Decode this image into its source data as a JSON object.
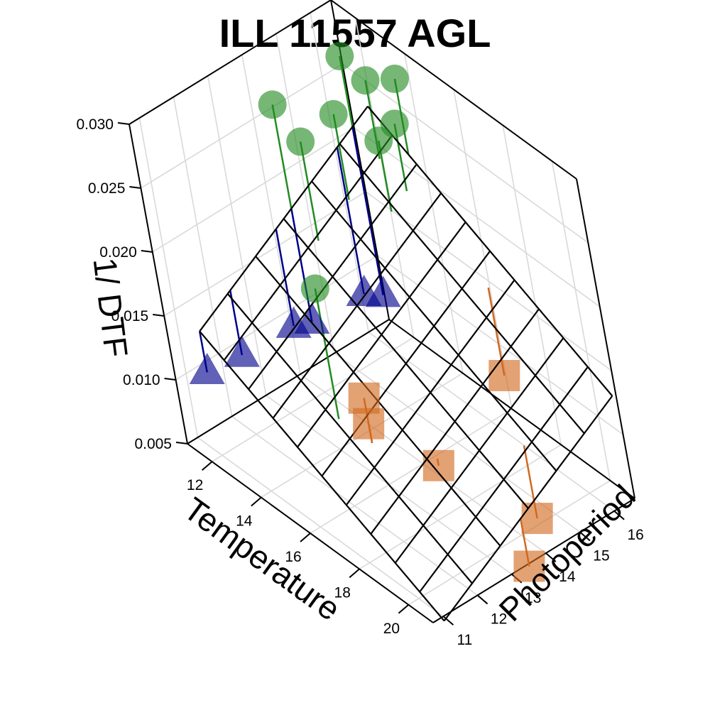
{
  "chart_data": {
    "type": "scatter",
    "title": "ILL 11557 AGL",
    "xlabel": "Temperature",
    "ylabel": "Photoperiod",
    "zlabel": "1/ DTF",
    "x_ticks": [
      "12",
      "14",
      "16",
      "18",
      "20"
    ],
    "y_ticks": [
      "11",
      "12",
      "13",
      "14",
      "15",
      "16"
    ],
    "z_ticks": [
      "0.005",
      "0.010",
      "0.015",
      "0.020",
      "0.025",
      "0.030"
    ],
    "xlim": [
      11,
      21
    ],
    "ylim": [
      10.7,
      16.6
    ],
    "zlim": [
      0.005,
      0.03
    ],
    "grid": true,
    "fitted_plane": {
      "x_range": [
        12,
        21
      ],
      "y_range": [
        11,
        16.5
      ],
      "x_steps": 10,
      "y_steps": 6
    },
    "series": [
      {
        "marker": "triangle",
        "color": "#00008B",
        "points": [
          {
            "x": 12,
            "y": 16,
            "z": 0.0093
          },
          {
            "x": 12,
            "y": 15.5,
            "z": 0.0102
          },
          {
            "x": 12,
            "y": 14,
            "z": 0.0105
          },
          {
            "x": 12,
            "y": 13.5,
            "z": 0.011
          },
          {
            "x": 12,
            "y": 12,
            "z": 0.0112
          },
          {
            "x": 12,
            "y": 11,
            "z": 0.0115
          }
        ]
      },
      {
        "marker": "square",
        "color": "#D2691E",
        "points": [
          {
            "x": 17,
            "y": 12.2,
            "z": 0.0145
          },
          {
            "x": 17,
            "y": 12.2,
            "z": 0.0125
          },
          {
            "x": 18.5,
            "y": 13,
            "z": 0.01
          },
          {
            "x": 17,
            "y": 16,
            "z": 0.01
          },
          {
            "x": 20,
            "y": 14.5,
            "z": 0.0055
          },
          {
            "x": 21,
            "y": 13.5,
            "z": 0.0048
          }
        ]
      },
      {
        "marker": "circle",
        "color": "#228B22",
        "points": [
          {
            "x": 12,
            "y": 14,
            "z": 0.0275
          },
          {
            "x": 13,
            "y": 14,
            "z": 0.026
          },
          {
            "x": 14,
            "y": 15.5,
            "z": 0.025
          },
          {
            "x": 14,
            "y": 16,
            "z": 0.0255
          },
          {
            "x": 13,
            "y": 16,
            "z": 0.0275
          },
          {
            "x": 13.5,
            "y": 16.5,
            "z": 0.0275
          },
          {
            "x": 13,
            "y": 15,
            "z": 0.0265
          },
          {
            "x": 12,
            "y": 16,
            "z": 0.028
          },
          {
            "x": 16,
            "y": 12,
            "z": 0.022
          }
        ]
      }
    ]
  }
}
